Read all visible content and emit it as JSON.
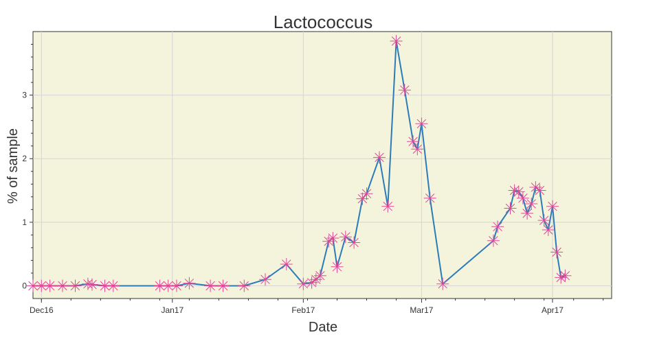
{
  "chart_data": {
    "type": "line",
    "title": "Lactococcus",
    "xlabel": "Date",
    "ylabel": "% of sample",
    "x_ticks": [
      {
        "date": "2016-12-01",
        "label": "Dec16"
      },
      {
        "date": "2017-01-01",
        "label": "Jan17"
      },
      {
        "date": "2017-02-01",
        "label": "Feb17"
      },
      {
        "date": "2017-03-01",
        "label": "Mar17"
      },
      {
        "date": "2017-04-01",
        "label": "Apr17"
      }
    ],
    "y_ticks": [
      0,
      1,
      2,
      3
    ],
    "xlim": [
      "2016-11-29",
      "2017-04-15"
    ],
    "ylim": [
      -0.2,
      4.0
    ],
    "grid": true,
    "colors": {
      "plot_background": "#f4f3dc",
      "line": "#2b7bb9",
      "marker": "#e0459a",
      "grid": "#d5d5d5"
    },
    "series": [
      {
        "marker": "asterisk",
        "x": [
          "2016-11-29",
          "2016-12-01",
          "2016-12-03",
          "2016-12-06",
          "2016-12-09",
          "2016-12-12",
          "2016-12-13",
          "2016-12-16",
          "2016-12-18",
          "2016-12-29",
          "2016-12-31",
          "2017-01-02",
          "2017-01-05",
          "2017-01-10",
          "2017-01-13",
          "2017-01-18",
          "2017-01-23",
          "2017-01-28",
          "2017-02-01",
          "2017-02-03",
          "2017-02-04",
          "2017-02-05",
          "2017-02-07",
          "2017-02-08",
          "2017-02-09",
          "2017-02-11",
          "2017-02-13",
          "2017-02-15",
          "2017-02-16",
          "2017-02-19",
          "2017-02-21",
          "2017-02-23",
          "2017-02-25",
          "2017-02-27",
          "2017-02-28",
          "2017-03-01",
          "2017-03-03",
          "2017-03-06",
          "2017-03-18",
          "2017-03-19",
          "2017-03-22",
          "2017-03-23",
          "2017-03-24",
          "2017-03-25",
          "2017-03-26",
          "2017-03-27",
          "2017-03-28",
          "2017-03-29",
          "2017-03-30",
          "2017-03-31",
          "2017-04-01",
          "2017-04-02",
          "2017-04-03",
          "2017-04-04"
        ],
        "y": [
          0,
          0,
          0,
          0,
          0,
          0.03,
          0.02,
          0,
          0,
          0,
          0,
          0,
          0.04,
          0,
          0,
          0,
          0.1,
          0.34,
          0.03,
          0.05,
          0.1,
          0.16,
          0.7,
          0.75,
          0.3,
          0.77,
          0.68,
          1.37,
          1.45,
          2.02,
          1.25,
          3.85,
          3.08,
          2.27,
          2.15,
          2.55,
          1.38,
          0.03,
          0.71,
          0.93,
          1.22,
          1.5,
          1.48,
          1.38,
          1.14,
          1.29,
          1.55,
          1.5,
          1.03,
          0.88,
          1.25,
          0.53,
          0.13,
          0.16
        ]
      }
    ]
  }
}
